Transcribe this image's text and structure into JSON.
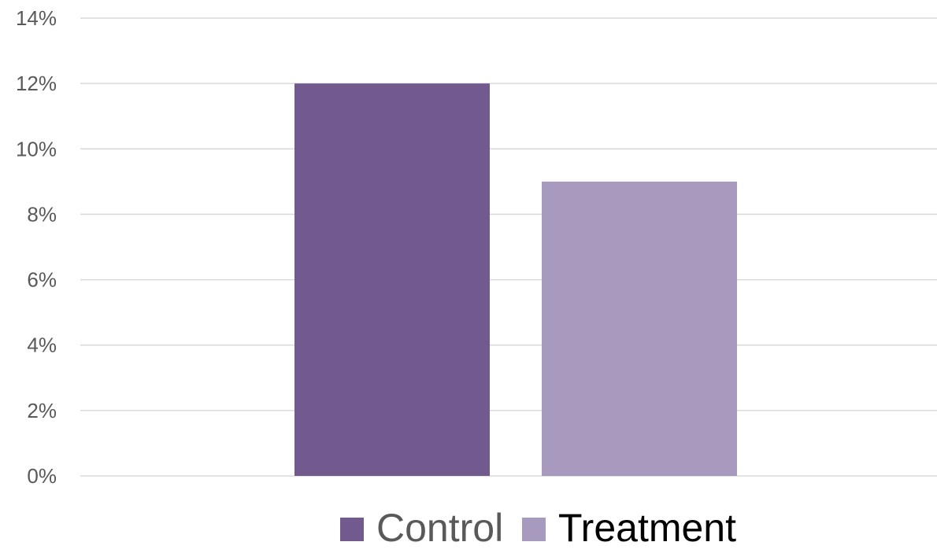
{
  "chart_data": {
    "type": "bar",
    "categories": [
      ""
    ],
    "series": [
      {
        "name": "Control",
        "values": [
          12
        ],
        "color": "#725a8f"
      },
      {
        "name": "Treatment",
        "values": [
          9
        ],
        "color": "#a899be"
      }
    ],
    "ylim": [
      0,
      14
    ],
    "y_ticks": [
      0,
      2,
      4,
      6,
      8,
      10,
      12,
      14
    ],
    "y_tick_format": "percent",
    "grid": true,
    "legend_position": "bottom",
    "legend_text_colors": [
      "#595959",
      "#000000"
    ],
    "title": "",
    "xlabel": "",
    "ylabel": ""
  }
}
